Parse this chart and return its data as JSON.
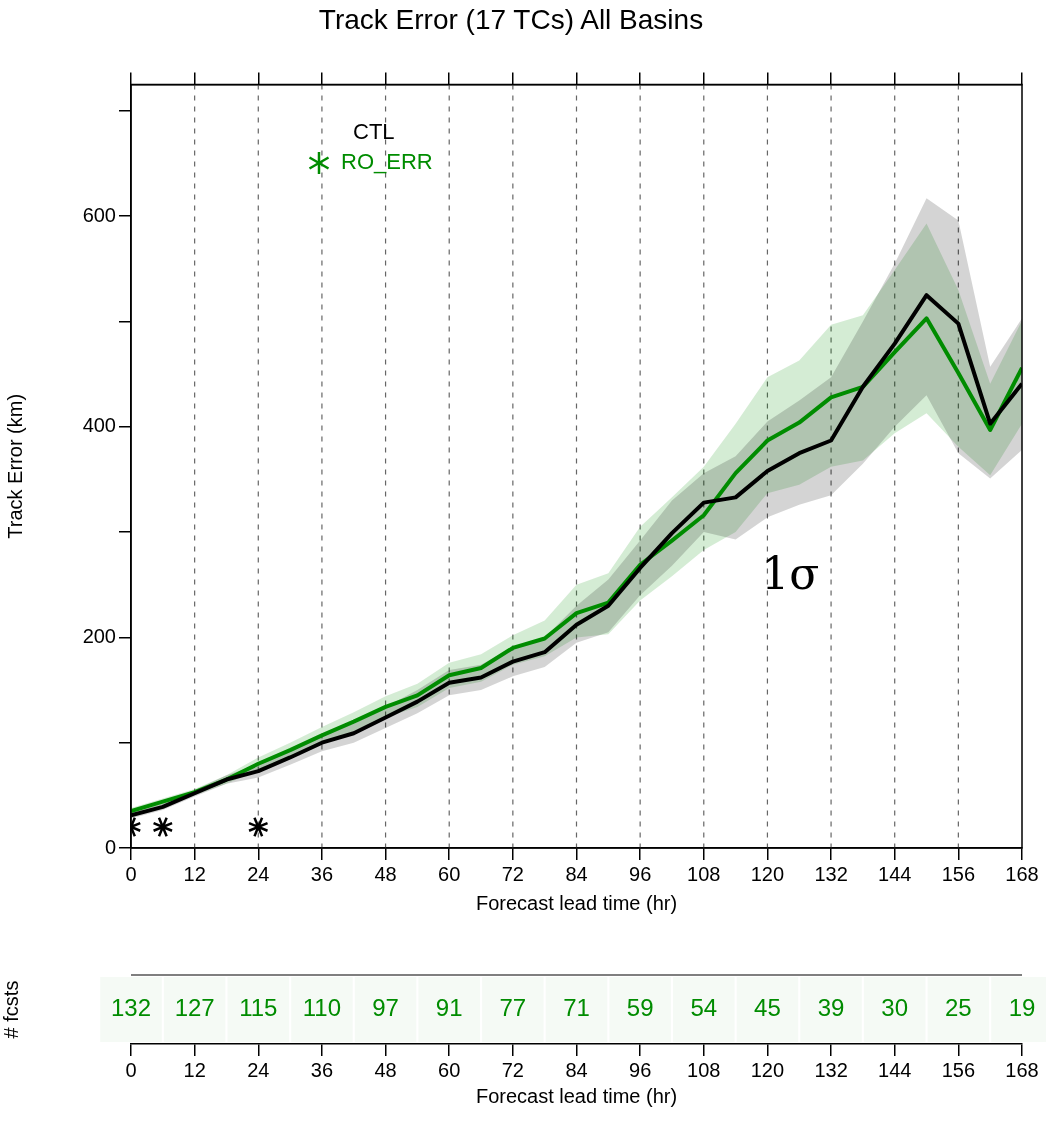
{
  "chart_data": [
    {
      "type": "line",
      "title": "Track Error (17 TCs) All Basins",
      "xlabel": "Forecast lead time (hr)",
      "ylabel": "Track Error (km)",
      "x": [
        0,
        6,
        12,
        18,
        24,
        30,
        36,
        42,
        48,
        54,
        60,
        66,
        72,
        78,
        84,
        90,
        96,
        102,
        108,
        114,
        120,
        126,
        132,
        138,
        144,
        150,
        156,
        162,
        168
      ],
      "xlim": [
        0,
        168
      ],
      "xticks": [
        0,
        12,
        24,
        36,
        48,
        60,
        72,
        84,
        96,
        108,
        120,
        132,
        144,
        156,
        168
      ],
      "ylim": [
        0,
        725
      ],
      "yticks": [
        0,
        {
          "value": 100,
          "label": null
        },
        200,
        {
          "value": 300,
          "label": null
        },
        400,
        {
          "value": 500,
          "label": null
        },
        600,
        {
          "value": 700,
          "label": null
        }
      ],
      "grid": "x",
      "legend": "top left",
      "series": [
        {
          "name": "CTL",
          "color": "#000000",
          "values": [
            31,
            39,
            52,
            65,
            73,
            86,
            100,
            109,
            124,
            139,
            157,
            162,
            177,
            186,
            212,
            230,
            266,
            299,
            328,
            333,
            358,
            375,
            387,
            438,
            479,
            525,
            498,
            403,
            441
          ],
          "lower": [
            28,
            36,
            49,
            61,
            67,
            79,
            92,
            100,
            114,
            128,
            145,
            150,
            163,
            172,
            195,
            205,
            240,
            268,
            300,
            293,
            314,
            326,
            335,
            365,
            400,
            430,
            375,
            351,
            378
          ],
          "upper": [
            34,
            42,
            55,
            69,
            79,
            93,
            108,
            118,
            134,
            150,
            169,
            174,
            191,
            200,
            230,
            255,
            292,
            330,
            356,
            372,
            405,
            425,
            447,
            500,
            555,
            617,
            596,
            457,
            503
          ]
        },
        {
          "name": "RO_ERR",
          "color": "#008c00",
          "values": [
            35,
            44,
            53,
            65,
            80,
            93,
            107,
            120,
            134,
            145,
            164,
            171,
            190,
            199,
            223,
            233,
            269,
            292,
            316,
            356,
            387,
            404,
            428,
            438,
            471,
            503,
            451,
            397,
            456
          ],
          "lower": [
            32,
            41,
            50,
            61,
            74,
            86,
            99,
            111,
            124,
            134,
            152,
            158,
            174,
            182,
            200,
            203,
            235,
            258,
            283,
            300,
            337,
            345,
            362,
            368,
            394,
            413,
            381,
            354,
            403
          ],
          "upper": [
            38,
            47,
            56,
            69,
            86,
            100,
            115,
            129,
            144,
            156,
            176,
            184,
            202,
            216,
            250,
            261,
            305,
            333,
            362,
            403,
            447,
            463,
            497,
            506,
            549,
            593,
            530,
            441,
            501
          ]
        },
        {
          "type": "scatter",
          "color": "#000000",
          "marker": "cross",
          "x": [
            0,
            6,
            24
          ],
          "values": [
            20,
            20,
            20
          ]
        }
      ],
      "annotations": [
        "1σ"
      ]
    },
    {
      "type": "heatmap",
      "xlabel": "Forecast lead time (hr)",
      "ylabel": "# fcsts",
      "color": "#008c00",
      "categories": [
        "0",
        "12",
        "24",
        "36",
        "48",
        "60",
        "72",
        "84",
        "96",
        "108",
        "120",
        "132",
        "144",
        "156",
        "168"
      ],
      "y_categories": [
        null
      ],
      "cells": [
        [
          132,
          127,
          115,
          110,
          97,
          91,
          77,
          71,
          59,
          54,
          45,
          39,
          30,
          25,
          19
        ]
      ],
      "data_labels": true
    }
  ]
}
